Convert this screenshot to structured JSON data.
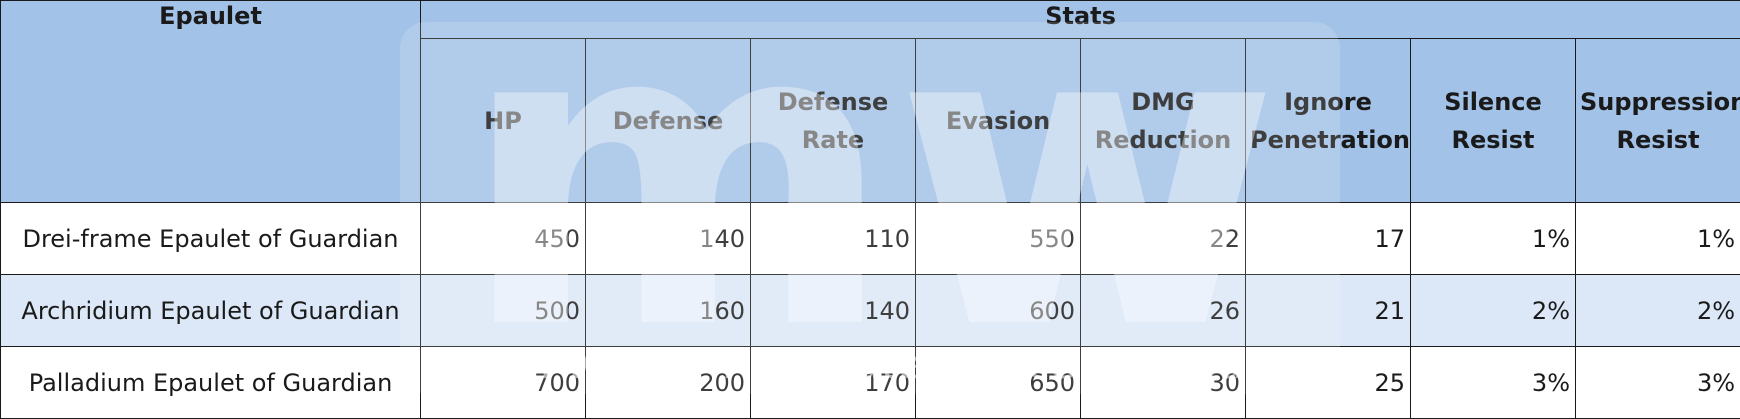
{
  "table": {
    "header": {
      "first_column": "Epaulet",
      "group": "Stats",
      "columns": [
        "HP",
        "Defense",
        "Defense Rate",
        "Evasion",
        "DMG Reduction",
        "Ignore Penetration",
        "Silence Resist",
        "Suppression Resist"
      ]
    },
    "rows": [
      {
        "name": "Drei-frame Epaulet of Guardian",
        "values": [
          "450",
          "140",
          "110",
          "550",
          "22",
          "17",
          "1%",
          "1%"
        ]
      },
      {
        "name": "Archridium Epaulet of Guardian",
        "values": [
          "500",
          "160",
          "140",
          "600",
          "26",
          "21",
          "2%",
          "2%"
        ]
      },
      {
        "name": "Palladium Epaulet of Guardian",
        "values": [
          "700",
          "200",
          "170",
          "650",
          "30",
          "25",
          "3%",
          "3%"
        ]
      }
    ]
  },
  "watermark": {
    "text": "mr. wormy . ultimate source of cabal",
    "logo": "mw"
  },
  "colors": {
    "header_bg": "#a2c2e8",
    "row_alt_bg": "#dce8f7",
    "row_bg": "#ffffff",
    "border": "#1a1a1a"
  }
}
